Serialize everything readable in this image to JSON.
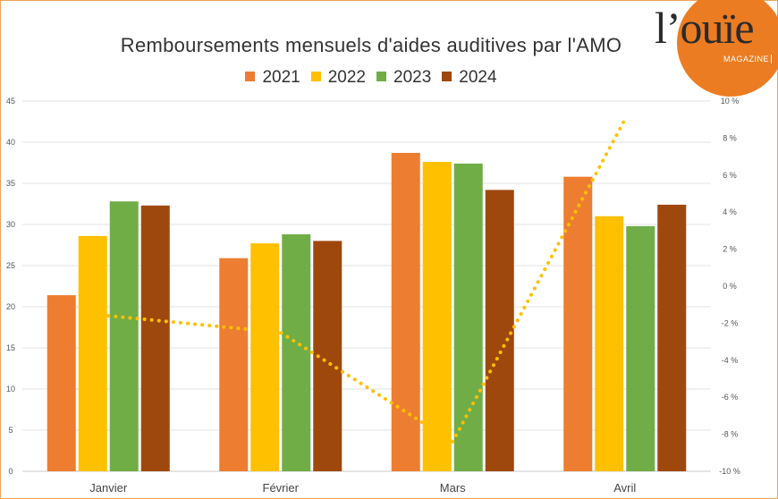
{
  "chart_data": {
    "type": "bar",
    "title": "Remboursements mensuels d'aides auditives par l'AMO",
    "categories": [
      "Janvier",
      "Février",
      "Mars",
      "Avril"
    ],
    "series": [
      {
        "name": "2021",
        "color": "#ed7d31",
        "values": [
          21.4,
          25.9,
          38.7,
          35.8
        ]
      },
      {
        "name": "2022",
        "color": "#ffc000",
        "values": [
          28.6,
          27.7,
          37.6,
          31.0
        ]
      },
      {
        "name": "2023",
        "color": "#70ad47",
        "values": [
          32.8,
          28.8,
          37.4,
          29.8
        ]
      },
      {
        "name": "2024",
        "color": "#9e480e",
        "values": [
          32.3,
          28.0,
          34.2,
          32.4
        ]
      }
    ],
    "line": {
      "type": "line",
      "style": "dotted",
      "color": "#ffc000",
      "axis": "secondary",
      "values": [
        -1.6,
        -2.5,
        -8.4,
        9.0
      ]
    },
    "ylim": [
      0,
      45
    ],
    "yticks": [
      "0",
      "5",
      "10",
      "15",
      "20",
      "25",
      "30",
      "35",
      "40",
      "45"
    ],
    "y2lim": [
      -10,
      10
    ],
    "y2ticks": [
      "-10 %",
      "-8 %",
      "-6 %",
      "-4 %",
      "-2 %",
      "0 %",
      "2 %",
      "4 %",
      "6 %",
      "8 %",
      "10 %"
    ],
    "grid": true,
    "legend_position": "top"
  },
  "logo": {
    "text": "l’ouïe",
    "subtitle": "MAGAZINE"
  }
}
